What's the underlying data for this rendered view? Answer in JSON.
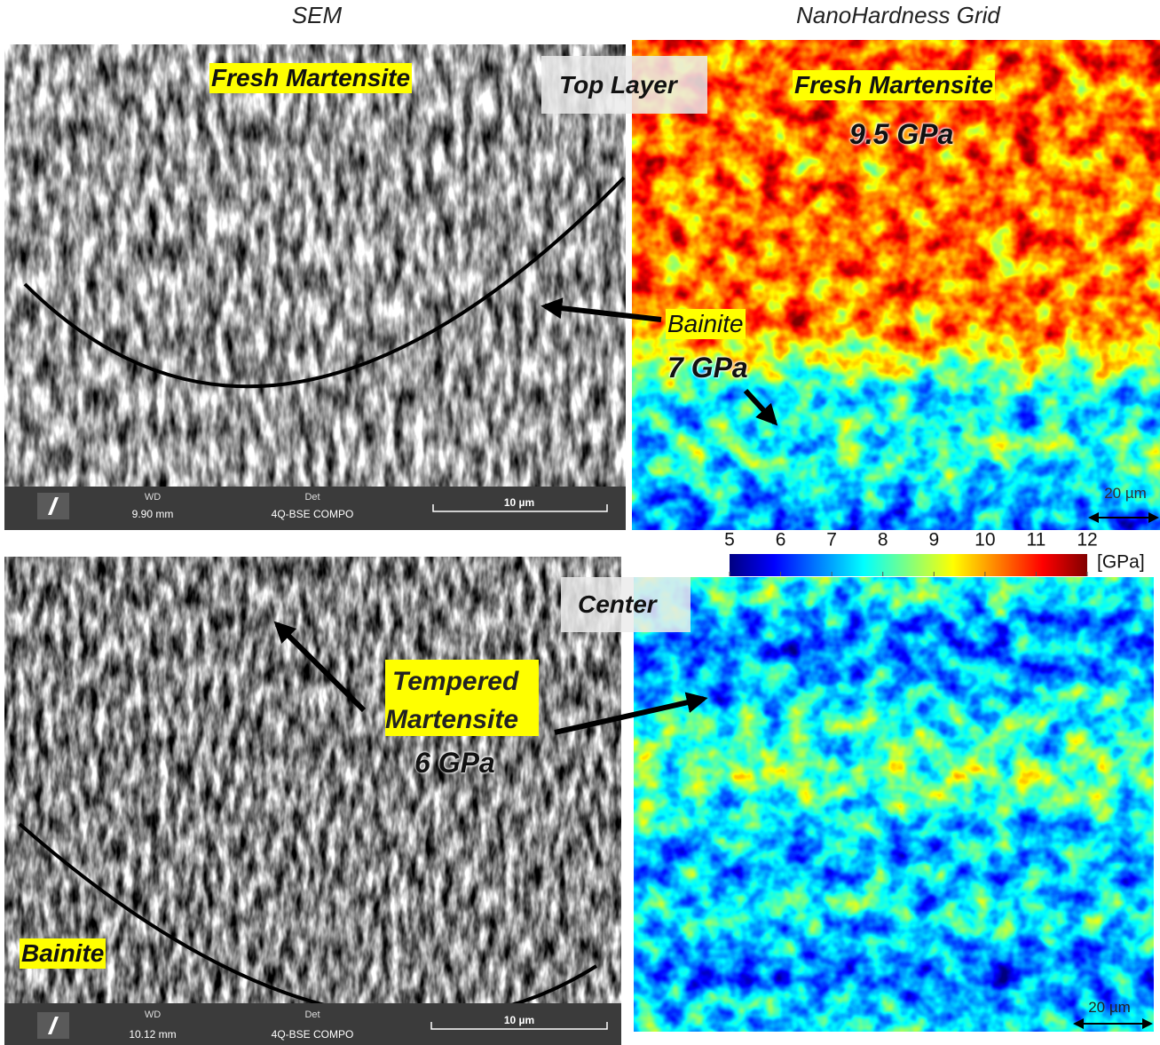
{
  "headers": {
    "sem": "SEM",
    "nano": "NanoHardness Grid"
  },
  "top": {
    "sem_label": "Fresh Martensite",
    "layer": "Top Layer",
    "map_label": "Fresh Martensite",
    "map_value": "9.5 GPa",
    "bainite": "Bainite",
    "bainite_value": "7 GPa",
    "info": {
      "wd_label": "WD",
      "wd": "9.90 mm",
      "det_label": "Det",
      "det": "4Q-BSE COMPO",
      "scale": "10 µm"
    },
    "map_scale": "20 µm"
  },
  "colorbar": {
    "lim": [
      5,
      12
    ],
    "ticks": [
      5,
      6,
      7,
      8,
      9,
      10,
      11,
      12
    ],
    "unit": "[GPa]"
  },
  "bottom": {
    "layer": "Center",
    "tempered_1": "Tempered",
    "tempered_2": "Martensite",
    "tempered_value": "6 GPa",
    "bainite": "Bainite",
    "info": {
      "wd_label": "WD",
      "wd": "10.12 mm",
      "det_label": "Det",
      "det": "4Q-BSE COMPO",
      "scale": "10 µm"
    },
    "map_scale": "20 µm"
  }
}
